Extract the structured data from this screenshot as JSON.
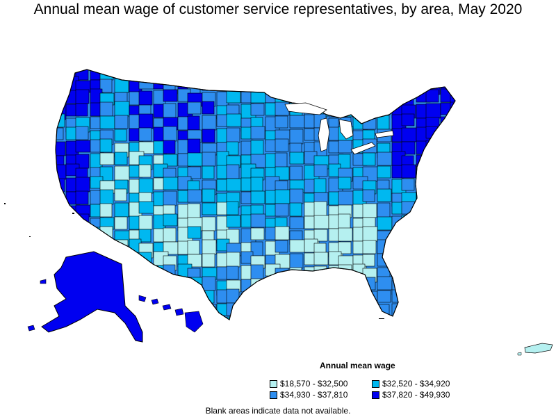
{
  "title": "Annual mean wage of customer service representatives, by area, May 2020",
  "legend": {
    "title": "Annual mean wage",
    "items": [
      {
        "label": "$18,570 - $32,500",
        "color": "#b5f0f0"
      },
      {
        "label": "$32,520 - $34,920",
        "color": "#00b8f0"
      },
      {
        "label": "$34,930 - $37,810",
        "color": "#2e8ef0"
      },
      {
        "label": "$37,820 - $49,930",
        "color": "#0000f0"
      }
    ]
  },
  "note": "Blank areas indicate data not available.",
  "colors": {
    "tier1": "#b5f0f0",
    "tier2": "#00b8f0",
    "tier3": "#2e8ef0",
    "tier4": "#0000f0",
    "border": "#000000"
  }
}
